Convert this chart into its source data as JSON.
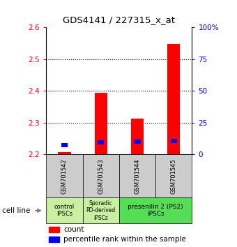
{
  "title": "GDS4141 / 227315_x_at",
  "samples": [
    "GSM701542",
    "GSM701543",
    "GSM701544",
    "GSM701545"
  ],
  "red_tops": [
    2.208,
    2.393,
    2.312,
    2.547
  ],
  "blue_tops": [
    2.235,
    2.245,
    2.246,
    2.249
  ],
  "blue_bottoms": [
    2.222,
    2.232,
    2.233,
    2.236
  ],
  "ylim_left": [
    2.2,
    2.6
  ],
  "ylim_right": [
    0,
    100
  ],
  "yticks_left": [
    2.2,
    2.3,
    2.4,
    2.5,
    2.6
  ],
  "yticks_right": [
    0,
    25,
    50,
    75,
    100
  ],
  "ytick_labels_right": [
    "0",
    "25",
    "50",
    "75",
    "100%"
  ],
  "cell_line_label": "cell line",
  "legend_red": "count",
  "legend_blue": "percentile rank within the sample",
  "bar_width": 0.35,
  "blue_bar_width": 0.18,
  "background_color": "#ffffff",
  "sample_bg": "#cccccc",
  "group1_color": "#c8f0a0",
  "group2_color": "#55dd55",
  "grid_yticks": [
    2.3,
    2.4,
    2.5
  ]
}
